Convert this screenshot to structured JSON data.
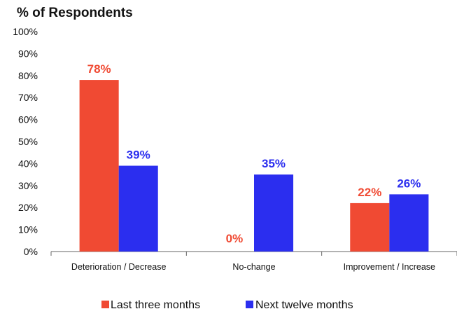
{
  "chart_data": {
    "type": "bar",
    "title": "% of Respondents",
    "categories": [
      "Deterioration / Decrease",
      "No-change",
      "Improvement / Increase"
    ],
    "series": [
      {
        "name": "Last three months",
        "values": [
          78,
          0,
          22
        ],
        "labels": [
          "78%",
          "0%",
          "22%"
        ],
        "color": "#F04A33"
      },
      {
        "name": "Next twelve months",
        "values": [
          39,
          35,
          26
        ],
        "labels": [
          "39%",
          "35%",
          "26%"
        ],
        "color": "#2B2EEF"
      }
    ],
    "ylim": [
      0,
      100
    ],
    "yticks": [
      "0%",
      "10%",
      "20%",
      "30%",
      "40%",
      "50%",
      "60%",
      "70%",
      "80%",
      "90%",
      "100%"
    ],
    "xlabel": "",
    "ylabel": "",
    "grid": false,
    "legend_position": "bottom-center"
  }
}
